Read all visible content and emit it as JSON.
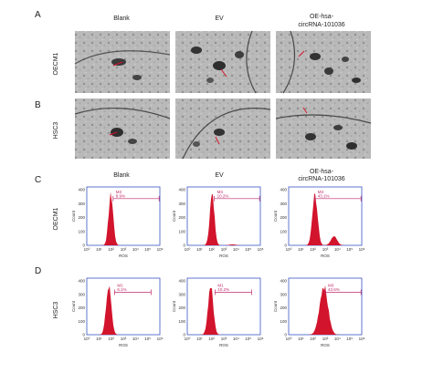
{
  "panel_labels": [
    "A",
    "B",
    "C",
    "D"
  ],
  "column_headers": {
    "c1": "Blank",
    "c2": "EV",
    "c3_line1": "OE-hsa-",
    "c3_line2": "circRNA-101036"
  },
  "row_labels": [
    "OECM1",
    "HSC3",
    "OECM1",
    "HSC3"
  ],
  "axis": {
    "y_label": "Count",
    "x_label": "ROS",
    "y_ticks": [
      "0",
      "100",
      "200",
      "300",
      "400"
    ],
    "x_ticks": [
      "10⁰",
      "10¹",
      "10²",
      "10³",
      "10⁴",
      "10⁵",
      "10⁶"
    ]
  },
  "histograms": [
    {
      "id": "c-blank",
      "gate": "M3",
      "pct": "8.9%"
    },
    {
      "id": "c-ev",
      "gate": "M3",
      "pct": "10.2%"
    },
    {
      "id": "c-oe",
      "gate": "M3",
      "pct": "43.1%"
    },
    {
      "id": "d-blank",
      "gate": "M1",
      "pct": "6.1%"
    },
    {
      "id": "d-ev",
      "gate": "M1",
      "pct": "10.2%"
    },
    {
      "id": "d-oe",
      "gate": "M3",
      "pct": "43.6%"
    }
  ],
  "colors": {
    "histogram_fill": "#d2142c",
    "axis_frame": "#3b55c4",
    "gate": "#c0286a"
  }
}
